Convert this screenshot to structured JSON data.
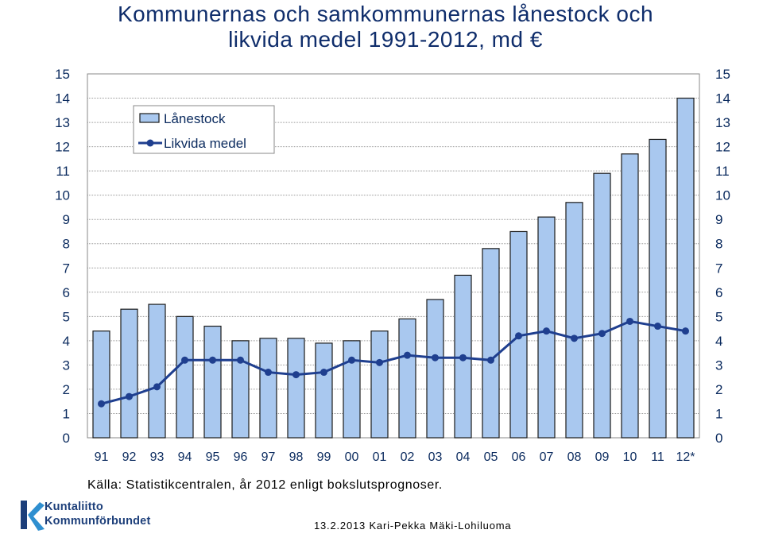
{
  "title_line1": "Kommunernas och samkommunernas lånestock och",
  "title_line2": "likvida medel 1991-2012, md €",
  "source": "Källa: Statistikcentralen, år 2012 enligt bokslutsprognoser.",
  "footer": "13.2.2013 Kari-Pekka Mäki-Lohiluoma",
  "logo": {
    "line1": "Kuntaliitto",
    "line2": "Kommunförbundet"
  },
  "colors": {
    "bar_fill": "#a9c8ef",
    "bar_stroke": "#1a1a1a",
    "line": "#1f3f8f",
    "title": "#0f2d6b"
  },
  "chart_data": {
    "type": "bar",
    "categories": [
      "91",
      "92",
      "93",
      "94",
      "95",
      "96",
      "97",
      "98",
      "99",
      "00",
      "01",
      "02",
      "03",
      "04",
      "05",
      "06",
      "07",
      "08",
      "09",
      "10",
      "11",
      "12*"
    ],
    "series": [
      {
        "name": "Lånestock",
        "type": "bar",
        "values": [
          4.4,
          5.3,
          5.5,
          5.0,
          4.6,
          4.0,
          4.1,
          4.1,
          3.9,
          4.0,
          4.4,
          4.9,
          5.7,
          6.7,
          7.8,
          8.5,
          9.1,
          9.7,
          10.9,
          11.7,
          12.3,
          14.0
        ]
      },
      {
        "name": "Likvida medel",
        "type": "line",
        "values": [
          1.4,
          1.7,
          2.1,
          3.2,
          3.2,
          3.2,
          2.7,
          2.6,
          2.7,
          3.2,
          3.1,
          3.4,
          3.3,
          3.3,
          3.2,
          4.2,
          4.4,
          4.1,
          4.3,
          4.8,
          4.6,
          4.4
        ]
      }
    ],
    "yticks": [
      "0",
      "1",
      "2",
      "3",
      "4",
      "5",
      "6",
      "7",
      "8",
      "9",
      "10",
      "11",
      "12",
      "13",
      "14",
      "15"
    ],
    "ylim": [
      0,
      15
    ],
    "grid": true,
    "legend_position": "top-left"
  }
}
